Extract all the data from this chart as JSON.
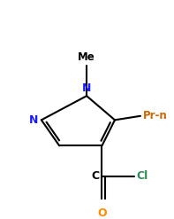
{
  "bg_color": "#ffffff",
  "bond_color": "#000000",
  "n_label_color": "#1a1aff",
  "o_color": "#ff8c00",
  "cl_color": "#2e8b57",
  "text_color": "#000000",
  "substituent_color": "#cc6600",
  "figsize": [
    1.97,
    2.47
  ],
  "dpi": 100,
  "xlim": [
    0,
    197
  ],
  "ylim": [
    0,
    247
  ]
}
